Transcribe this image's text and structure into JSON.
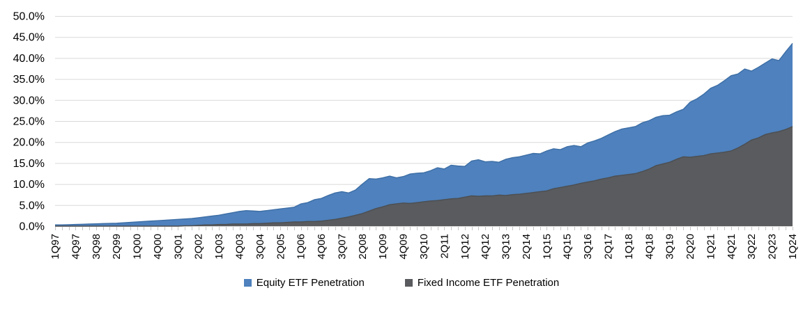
{
  "chart_data": {
    "type": "area",
    "mode": "overlapping",
    "title": "",
    "xlabel": "",
    "ylabel": "",
    "ylim": [
      0,
      50
    ],
    "y_ticks": [
      0,
      5,
      10,
      15,
      20,
      25,
      30,
      35,
      40,
      45,
      50
    ],
    "y_tick_labels": [
      "0.0%",
      "5.0%",
      "10.0%",
      "15.0%",
      "20.0%",
      "25.0%",
      "30.0%",
      "35.0%",
      "40.0%",
      "45.0%",
      "50.0%"
    ],
    "x_tick_label_every": 3,
    "grid": "horizontal",
    "grid_color": "#d9d9d9",
    "tick_color": "#c6c6c6",
    "legend_position": "bottom-center",
    "x_labels": [
      "1Q97",
      "2Q97",
      "3Q97",
      "4Q97",
      "1Q98",
      "2Q98",
      "3Q98",
      "4Q98",
      "1Q99",
      "2Q99",
      "3Q99",
      "4Q99",
      "1Q00",
      "2Q00",
      "3Q00",
      "4Q00",
      "1Q01",
      "2Q01",
      "3Q01",
      "4Q01",
      "1Q02",
      "2Q02",
      "3Q02",
      "4Q02",
      "1Q03",
      "2Q03",
      "3Q03",
      "4Q03",
      "1Q04",
      "2Q04",
      "3Q04",
      "4Q04",
      "1Q05",
      "2Q05",
      "3Q05",
      "4Q05",
      "1Q06",
      "2Q06",
      "3Q06",
      "4Q06",
      "1Q07",
      "2Q07",
      "3Q07",
      "4Q07",
      "1Q08",
      "2Q08",
      "3Q08",
      "4Q08",
      "1Q09",
      "2Q09",
      "3Q09",
      "4Q09",
      "1Q10",
      "2Q10",
      "3Q10",
      "4Q10",
      "1Q11",
      "2Q11",
      "3Q11",
      "4Q11",
      "1Q12",
      "2Q12",
      "3Q12",
      "4Q12",
      "1Q13",
      "2Q13",
      "3Q13",
      "4Q13",
      "1Q14",
      "2Q14",
      "3Q14",
      "4Q14",
      "1Q15",
      "2Q15",
      "3Q15",
      "4Q15",
      "1Q16",
      "2Q16",
      "3Q16",
      "4Q16",
      "1Q17",
      "2Q17",
      "3Q17",
      "4Q17",
      "1Q18",
      "2Q18",
      "3Q18",
      "4Q18",
      "1Q19",
      "2Q19",
      "3Q19",
      "4Q19",
      "1Q20",
      "2Q20",
      "3Q20",
      "4Q20",
      "1Q21",
      "2Q21",
      "3Q21",
      "4Q21",
      "1Q22",
      "2Q22",
      "3Q22",
      "4Q22",
      "1Q23",
      "2Q23",
      "3Q23",
      "4Q23",
      "1Q24"
    ],
    "series": [
      {
        "name": "Equity ETF Penetration",
        "color": "#4e81bd",
        "edge_color": "#3d6ea5",
        "values": [
          0.3,
          0.3,
          0.35,
          0.4,
          0.45,
          0.5,
          0.55,
          0.6,
          0.65,
          0.7,
          0.8,
          0.9,
          1.0,
          1.1,
          1.2,
          1.3,
          1.4,
          1.5,
          1.6,
          1.7,
          1.8,
          2.0,
          2.2,
          2.4,
          2.6,
          2.9,
          3.2,
          3.5,
          3.7,
          3.6,
          3.5,
          3.7,
          3.9,
          4.1,
          4.3,
          4.5,
          5.3,
          5.6,
          6.3,
          6.6,
          7.3,
          7.9,
          8.2,
          7.9,
          8.6,
          10.0,
          11.3,
          11.2,
          11.5,
          11.9,
          11.5,
          11.8,
          12.4,
          12.6,
          12.7,
          13.2,
          13.9,
          13.6,
          14.5,
          14.3,
          14.2,
          15.5,
          15.8,
          15.3,
          15.4,
          15.2,
          15.9,
          16.3,
          16.5,
          16.9,
          17.3,
          17.2,
          17.9,
          18.4,
          18.2,
          18.9,
          19.2,
          18.9,
          19.8,
          20.3,
          20.9,
          21.7,
          22.5,
          23.1,
          23.4,
          23.7,
          24.6,
          25.1,
          25.9,
          26.3,
          26.4,
          27.2,
          27.8,
          29.5,
          30.3,
          31.4,
          32.8,
          33.5,
          34.6,
          35.8,
          36.2,
          37.4,
          36.9,
          37.8,
          38.8,
          39.8,
          39.4,
          41.5,
          43.5
        ]
      },
      {
        "name": "Fixed Income ETF Penetration",
        "color": "#595b5e",
        "edge_color": "#4c4e51",
        "values": [
          0,
          0,
          0,
          0,
          0,
          0,
          0,
          0,
          0,
          0,
          0,
          0,
          0,
          0,
          0,
          0,
          0,
          0,
          0,
          0.1,
          0.1,
          0.2,
          0.3,
          0.3,
          0.4,
          0.4,
          0.5,
          0.5,
          0.5,
          0.6,
          0.6,
          0.7,
          0.8,
          0.8,
          0.9,
          1.0,
          1.0,
          1.1,
          1.1,
          1.2,
          1.4,
          1.6,
          1.9,
          2.2,
          2.6,
          3.0,
          3.6,
          4.2,
          4.6,
          5.1,
          5.3,
          5.5,
          5.4,
          5.6,
          5.8,
          6.0,
          6.1,
          6.3,
          6.5,
          6.6,
          6.9,
          7.2,
          7.1,
          7.2,
          7.2,
          7.4,
          7.3,
          7.5,
          7.6,
          7.8,
          8.0,
          8.2,
          8.4,
          8.9,
          9.2,
          9.5,
          9.8,
          10.2,
          10.5,
          10.8,
          11.2,
          11.5,
          11.9,
          12.1,
          12.3,
          12.5,
          13.0,
          13.6,
          14.4,
          14.8,
          15.2,
          15.9,
          16.5,
          16.4,
          16.6,
          16.8,
          17.2,
          17.4,
          17.6,
          17.9,
          18.6,
          19.5,
          20.5,
          21.0,
          21.8,
          22.2,
          22.5,
          23.0,
          23.7
        ]
      }
    ]
  }
}
